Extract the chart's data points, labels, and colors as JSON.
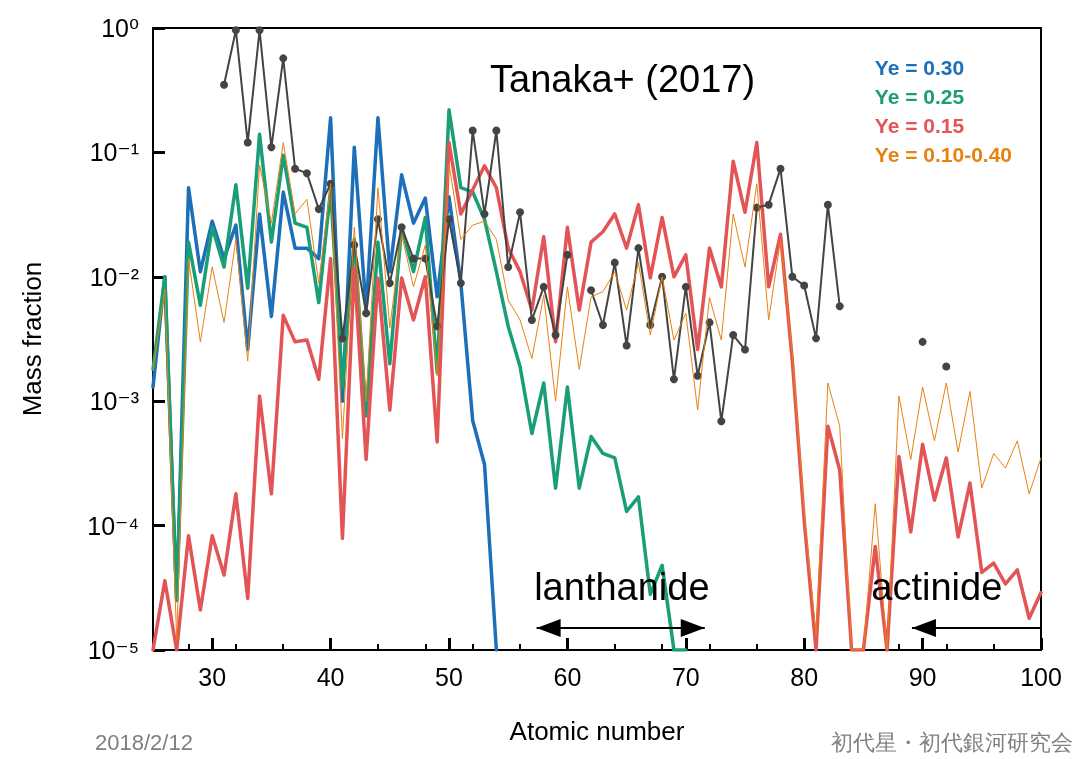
{
  "chart_data": {
    "type": "line",
    "title": "Tanaka+ (2017)",
    "xlabel": "Atomic number",
    "ylabel": "Mass fraction",
    "x": [
      25,
      26,
      27,
      28,
      29,
      30,
      31,
      32,
      33,
      34,
      35,
      36,
      37,
      38,
      39,
      40,
      41,
      42,
      43,
      44,
      45,
      46,
      47,
      48,
      49,
      50,
      51,
      52,
      53,
      54,
      55,
      56,
      57,
      58,
      59,
      60,
      61,
      62,
      63,
      64,
      65,
      66,
      67,
      68,
      69,
      70,
      71,
      72,
      73,
      74,
      75,
      76,
      77,
      78,
      79,
      80,
      81,
      82,
      83,
      84,
      85,
      86,
      87,
      88,
      89,
      90,
      91,
      92,
      93,
      94,
      95,
      96,
      97,
      98,
      99,
      100
    ],
    "series": [
      {
        "name": "Ye = 0.30",
        "color": "#1c6fb8",
        "values": [
          0.0013,
          0.01,
          2.5e-05,
          0.052,
          0.011,
          0.028,
          0.014,
          0.026,
          0.0026,
          0.032,
          0.0048,
          0.048,
          0.017,
          0.017,
          0.014,
          0.19,
          0.001,
          0.11,
          0.0054,
          0.19,
          0.011,
          0.066,
          0.027,
          0.043,
          0.0069,
          0.044,
          0.0089,
          0.0007,
          0.00031,
          1e-05,
          null,
          null,
          null,
          null,
          null,
          null,
          null,
          null,
          null,
          null,
          null,
          null,
          null,
          null,
          null,
          null,
          null,
          null,
          null,
          null,
          null,
          null,
          null,
          null,
          null,
          null,
          null,
          null,
          null,
          null,
          null,
          null,
          null,
          null,
          null,
          null,
          null,
          null,
          null,
          null,
          null,
          null,
          null,
          null,
          null,
          null
        ]
      },
      {
        "name": "Ye = 0.25",
        "color": "#1a9e77",
        "values": [
          0.0018,
          0.01,
          2.5e-05,
          0.019,
          0.0059,
          0.025,
          0.012,
          0.055,
          0.0081,
          0.14,
          0.019,
          0.095,
          0.027,
          0.025,
          0.0062,
          0.05,
          0.0013,
          0.02,
          0.00076,
          0.019,
          0.002,
          0.025,
          0.011,
          0.03,
          0.0017,
          0.22,
          0.052,
          0.048,
          0.029,
          0.011,
          0.004,
          0.0019,
          0.00055,
          0.0014,
          0.0002,
          0.0013,
          0.0002,
          0.00052,
          0.00038,
          0.00035,
          0.00013,
          0.00017,
          2.8e-05,
          4.8e-05,
          1e-05,
          1e-05,
          null,
          null,
          null,
          null,
          null,
          null,
          null,
          null,
          null,
          null,
          null,
          null,
          null,
          null,
          null,
          null,
          null,
          null,
          null,
          null,
          null,
          null,
          null,
          null,
          null,
          null,
          null,
          null,
          null,
          null
        ]
      },
      {
        "name": "Ye = 0.15",
        "color": "#e35456",
        "values": [
          1e-05,
          3.6e-05,
          1e-05,
          8.3e-05,
          2.1e-05,
          8.3e-05,
          4e-05,
          0.00018,
          2.6e-05,
          0.0011,
          0.00018,
          0.0049,
          0.003,
          0.0031,
          0.0015,
          0.014,
          7.9e-05,
          0.012,
          0.00034,
          0.0098,
          0.00085,
          0.0098,
          0.0045,
          0.01,
          0.00047,
          0.12,
          0.032,
          0.05,
          0.078,
          0.052,
          0.017,
          0.011,
          0.0054,
          0.021,
          0.003,
          0.025,
          0.0054,
          0.019,
          0.023,
          0.032,
          0.017,
          0.038,
          0.0098,
          0.03,
          0.01,
          0.015,
          0.0026,
          0.017,
          0.0083,
          0.085,
          0.033,
          0.12,
          0.0083,
          0.022,
          0.0021,
          0.00011,
          1e-05,
          0.00063,
          0.00028,
          1e-05,
          1e-05,
          6.8e-05,
          1e-05,
          0.00036,
          8.9e-05,
          0.00045,
          0.00016,
          0.00035,
          8.1e-05,
          0.00022,
          4.2e-05,
          5e-05,
          3.4e-05,
          4.4e-05,
          1.8e-05,
          2.9e-05
        ]
      },
      {
        "name": "Ye = 0.10-0.40",
        "color": "#e8820f",
        "values": [
          0.0018,
          0.0079,
          1.2e-05,
          0.014,
          0.003,
          0.012,
          0.0043,
          0.02,
          0.0021,
          0.079,
          0.027,
          0.12,
          0.032,
          0.042,
          0.0089,
          0.056,
          0.0005,
          0.025,
          0.001,
          0.052,
          0.0039,
          0.022,
          0.0083,
          0.018,
          0.0016,
          0.081,
          0.02,
          0.026,
          0.028,
          0.02,
          0.0065,
          0.0045,
          0.0022,
          0.0071,
          0.001,
          0.0083,
          0.0018,
          0.0069,
          0.0076,
          0.011,
          0.0054,
          0.013,
          0.0034,
          0.01,
          0.0031,
          0.0051,
          0.00085,
          0.0068,
          0.0031,
          0.032,
          0.012,
          0.056,
          0.0045,
          0.02,
          0.0024,
          0.00013,
          1.3e-05,
          0.0014,
          0.00063,
          1e-05,
          1e-05,
          0.00015,
          1e-05,
          0.0011,
          0.00034,
          0.0013,
          0.00048,
          0.0014,
          0.00039,
          0.0012,
          0.0002,
          0.00038,
          0.00029,
          0.00048,
          0.00018,
          0.00035
        ]
      },
      {
        "color": "#444444",
        "marker": "circle",
        "values": [
          null,
          null,
          null,
          null,
          null,
          null,
          0.35,
          0.96,
          0.12,
          0.96,
          0.11,
          0.57,
          0.074,
          0.068,
          0.035,
          0.056,
          0.0032,
          0.018,
          0.0051,
          0.029,
          0.0089,
          0.025,
          0.014,
          0.014,
          0.004,
          0.029,
          0.0089,
          0.15,
          0.032,
          0.15,
          0.012,
          0.033,
          0.0045,
          0.0083,
          0.0034,
          0.015,
          null,
          0.0078,
          0.0041,
          0.013,
          0.0028,
          0.017,
          0.0041,
          0.01,
          0.0015,
          0.0083,
          0.0016,
          0.0043,
          0.00069,
          0.0034,
          0.0026,
          0.036,
          0.038,
          0.074,
          0.01,
          0.0085,
          0.0032,
          0.038,
          0.0058,
          null,
          null,
          null,
          null,
          null,
          null,
          0.003,
          null,
          0.0019,
          null,
          null,
          null,
          null,
          null,
          null,
          null,
          null
        ]
      }
    ],
    "xlim": [
      25,
      100
    ],
    "xticks": [
      30,
      40,
      50,
      60,
      70,
      80,
      90,
      100
    ],
    "ylim": [
      1e-05,
      1
    ],
    "log": true,
    "yticks": [
      {
        "value": 1e-05,
        "label": "10⁻⁵"
      },
      {
        "value": 0.0001,
        "label": "10⁻⁴"
      },
      {
        "value": 0.001,
        "label": "10⁻³"
      },
      {
        "value": 0.01,
        "label": "10⁻²"
      },
      {
        "value": 0.1,
        "label": "10⁻¹"
      },
      {
        "value": 1,
        "label": "10⁰"
      }
    ],
    "marker": "none",
    "grid": false,
    "legend": "top right",
    "annotations": [
      "lanthanide",
      "actinide",
      "2018/2/12",
      "初代星・初代銀河研究会"
    ]
  }
}
